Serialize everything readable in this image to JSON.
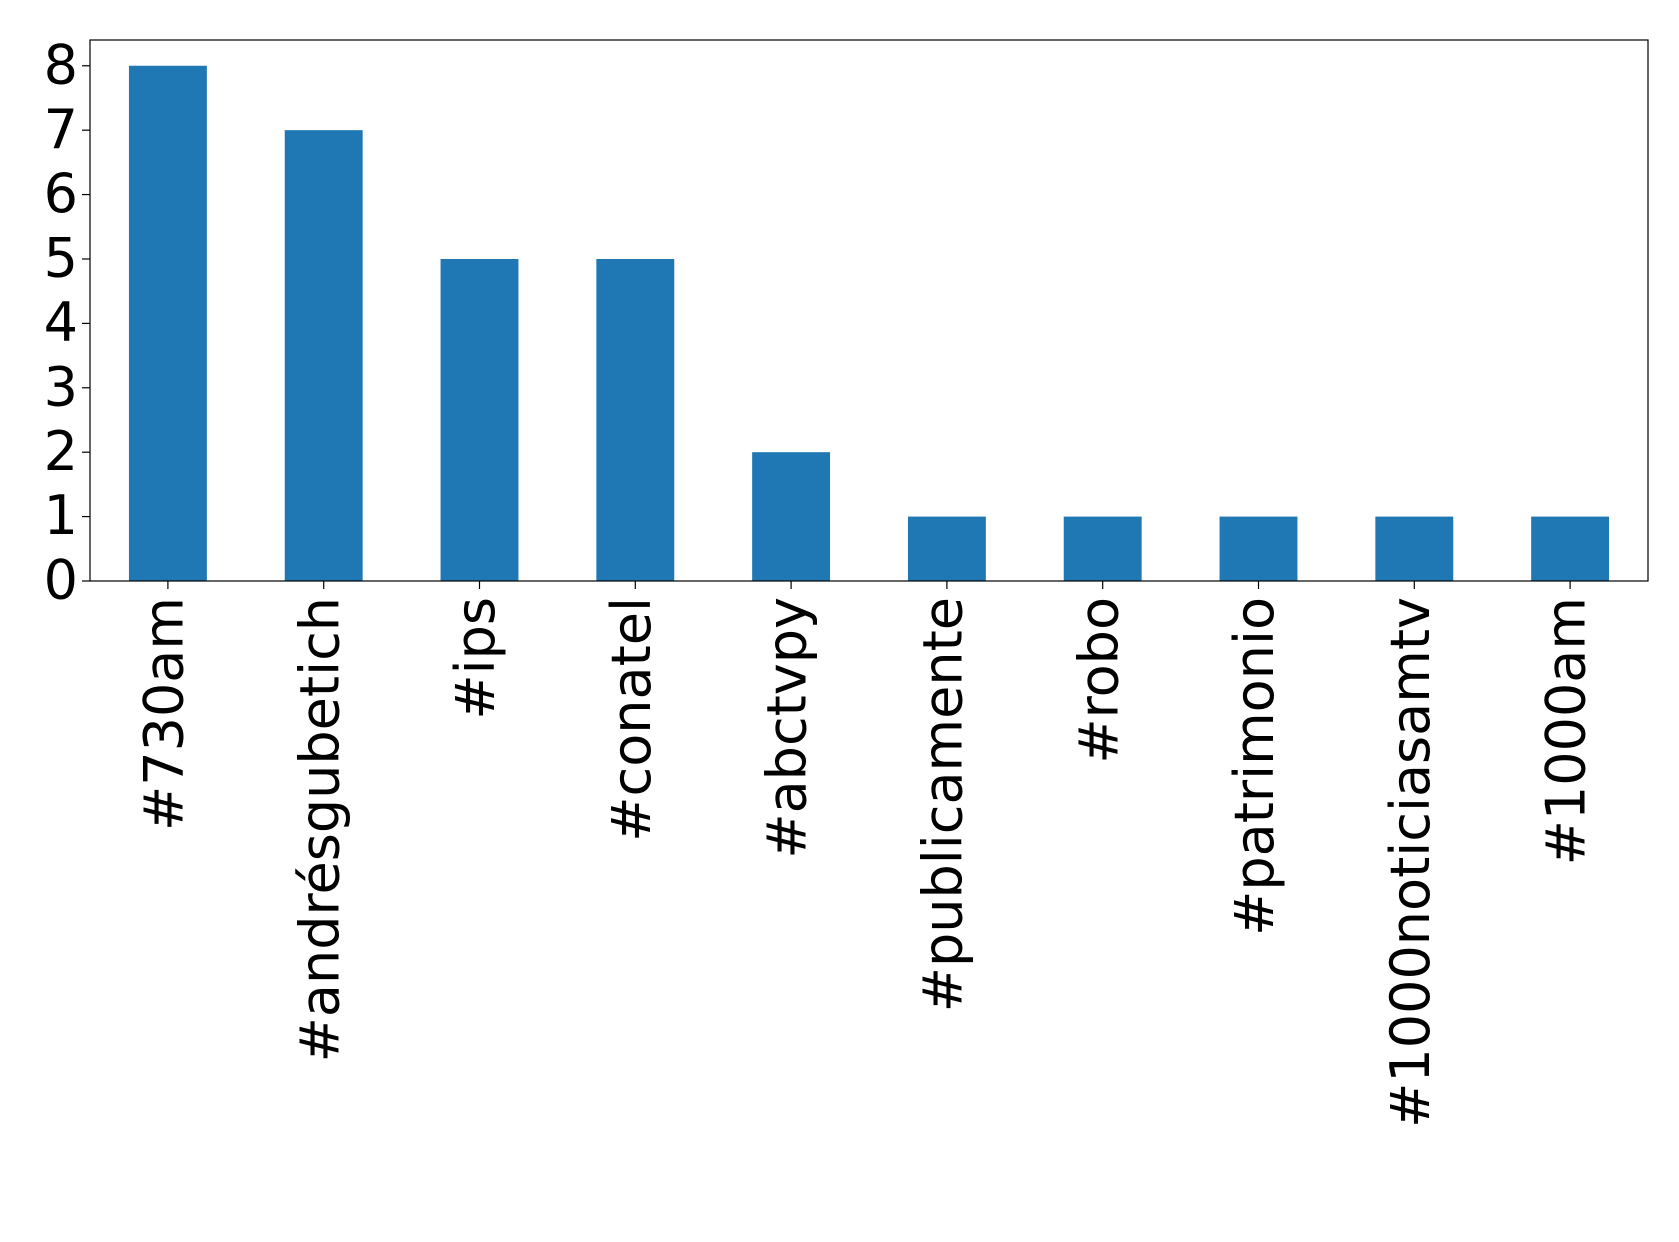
{
  "chart_data": {
    "type": "bar",
    "categories": [
      "#730am",
      "#andrésgubetich",
      "#ips",
      "#conatel",
      "#abctvpy",
      "#publicamente",
      "#robo",
      "#patrimonio",
      "#1000noticiasamtv",
      "#1000am"
    ],
    "values": [
      8,
      7,
      5,
      5,
      2,
      1,
      1,
      1,
      1,
      1
    ],
    "color": "#1f77b4",
    "ylim": [
      0,
      8.4
    ],
    "yticks": [
      0,
      1,
      2,
      3,
      4,
      5,
      6,
      7,
      8
    ],
    "grid": false
  }
}
